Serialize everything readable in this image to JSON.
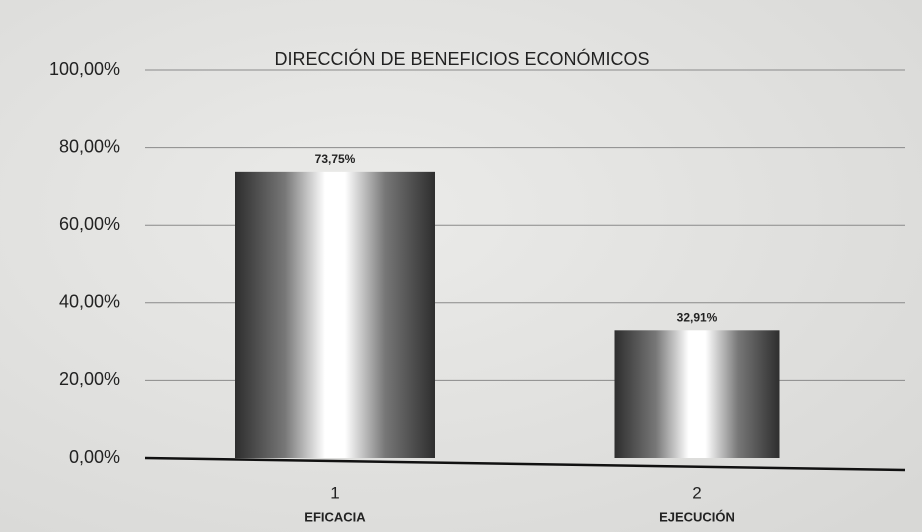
{
  "chart_data": {
    "type": "bar",
    "title": "DIRECCIÓN DE BENEFICIOS ECONÓMICOS",
    "categories": [
      "1",
      "2"
    ],
    "category_labels": [
      "EFICACIA",
      "EJECUCIÓN"
    ],
    "values": [
      73.75,
      32.91
    ],
    "value_labels": [
      "73,75%",
      "32,91%"
    ],
    "color": "#2e2e2e",
    "ylim": [
      0,
      100
    ],
    "yticks": [
      {
        "value": 0,
        "label": "0,00%"
      },
      {
        "value": 20,
        "label": "20,00%"
      },
      {
        "value": 40,
        "label": "40,00%"
      },
      {
        "value": 60,
        "label": "60,00%"
      },
      {
        "value": 80,
        "label": "80,00%"
      },
      {
        "value": 100,
        "label": "100,00%"
      }
    ],
    "grid": true
  }
}
